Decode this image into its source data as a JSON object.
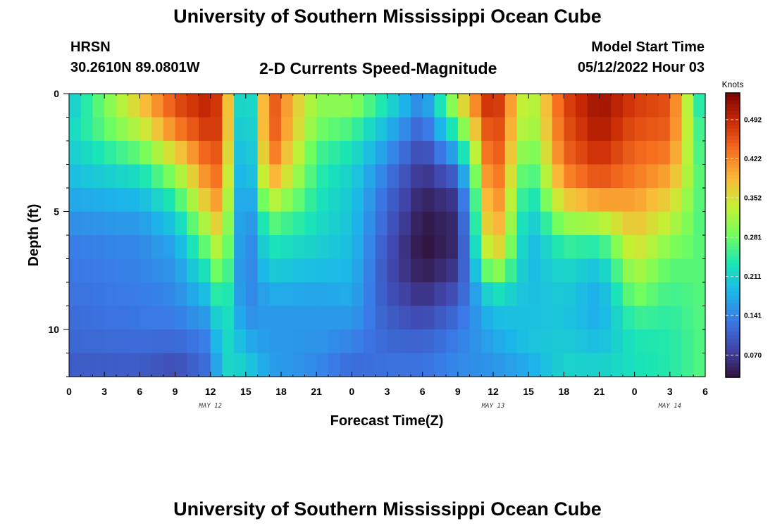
{
  "header": {
    "title": "University of Southern Mississippi Ocean Cube",
    "station": "HRSN",
    "coords": "30.2610N  89.0801W",
    "subtitle": "2-D Currents Speed-Magnitude",
    "model_start_label": "Model Start Time",
    "model_start_value": "05/12/2022 Hour 03"
  },
  "footer": {
    "title": "University of Southern Mississippi Ocean Cube"
  },
  "chart_data": {
    "type": "heatmap",
    "title": "2-D Currents Speed-Magnitude",
    "xlabel": "Forecast Time(Z)",
    "ylabel": "Depth (ft)",
    "xlim": [
      0,
      54
    ],
    "ylim": [
      12,
      0
    ],
    "x_tick_values": [
      0,
      3,
      6,
      9,
      12,
      15,
      18,
      21,
      24,
      27,
      30,
      33,
      36,
      39,
      42,
      45,
      48,
      51,
      54
    ],
    "x_tick_labels": [
      "0",
      "3",
      "6",
      "9",
      "12",
      "15",
      "18",
      "21",
      "0",
      "3",
      "6",
      "9",
      "12",
      "15",
      "18",
      "21",
      "0",
      "3",
      "6"
    ],
    "y_tick_values": [
      0,
      5,
      10
    ],
    "y_tick_labels": [
      "0",
      "5",
      "10"
    ],
    "date_labels": [
      {
        "x": 12,
        "text": "MAY 12"
      },
      {
        "x": 36,
        "text": "MAY 13"
      },
      {
        "x": 51,
        "text": "MAY 14"
      }
    ],
    "colorbar": {
      "title": "Knots",
      "ticks": [
        0.07,
        0.141,
        0.211,
        0.281,
        0.352,
        0.422,
        0.492
      ],
      "tick_labels": [
        "0.070",
        "0.141",
        "0.211",
        "0.281",
        "0.352",
        "0.422",
        "0.492"
      ],
      "range": [
        0.03,
        0.54
      ]
    },
    "x_hours": [
      0,
      6,
      9,
      12,
      13,
      14,
      15,
      17,
      21,
      24,
      27,
      30,
      33,
      36,
      39,
      42,
      45,
      48,
      51,
      54
    ],
    "depth_levels_ft": [
      0,
      1,
      2,
      3,
      4,
      5,
      6,
      7,
      8,
      9,
      10,
      11,
      12
    ],
    "speed_knots": [
      [
        0.18,
        0.22,
        0.21,
        0.2,
        0.18,
        0.16,
        0.14,
        0.13,
        0.13,
        0.12,
        0.12,
        0.11,
        0.1
      ],
      [
        0.38,
        0.36,
        0.3,
        0.25,
        0.2,
        0.17,
        0.15,
        0.14,
        0.14,
        0.13,
        0.13,
        0.11,
        0.1
      ],
      [
        0.47,
        0.45,
        0.4,
        0.33,
        0.27,
        0.22,
        0.18,
        0.16,
        0.15,
        0.14,
        0.13,
        0.1,
        0.08
      ],
      [
        0.5,
        0.5,
        0.47,
        0.45,
        0.42,
        0.37,
        0.32,
        0.27,
        0.22,
        0.18,
        0.15,
        0.13,
        0.12
      ],
      [
        0.45,
        0.47,
        0.46,
        0.44,
        0.43,
        0.4,
        0.37,
        0.34,
        0.3,
        0.27,
        0.24,
        0.22,
        0.21
      ],
      [
        0.3,
        0.3,
        0.28,
        0.26,
        0.24,
        0.22,
        0.21,
        0.2,
        0.19,
        0.19,
        0.2,
        0.22,
        0.22
      ],
      [
        0.14,
        0.13,
        0.12,
        0.12,
        0.12,
        0.12,
        0.12,
        0.12,
        0.13,
        0.14,
        0.16,
        0.19,
        0.22
      ],
      [
        0.46,
        0.48,
        0.46,
        0.44,
        0.38,
        0.3,
        0.25,
        0.22,
        0.19,
        0.16,
        0.16,
        0.16,
        0.17
      ],
      [
        0.3,
        0.3,
        0.27,
        0.25,
        0.24,
        0.23,
        0.22,
        0.2,
        0.18,
        0.16,
        0.16,
        0.15,
        0.14
      ],
      [
        0.32,
        0.28,
        0.24,
        0.22,
        0.2,
        0.2,
        0.19,
        0.19,
        0.18,
        0.17,
        0.15,
        0.13,
        0.11
      ],
      [
        0.25,
        0.2,
        0.17,
        0.14,
        0.12,
        0.11,
        0.1,
        0.09,
        0.09,
        0.1,
        0.11,
        0.12,
        0.13
      ],
      [
        0.15,
        0.12,
        0.09,
        0.07,
        0.05,
        0.04,
        0.03,
        0.03,
        0.05,
        0.07,
        0.1,
        0.12,
        0.13
      ],
      [
        0.36,
        0.3,
        0.22,
        0.14,
        0.08,
        0.06,
        0.05,
        0.06,
        0.08,
        0.11,
        0.13,
        0.14,
        0.15
      ],
      [
        0.52,
        0.5,
        0.49,
        0.48,
        0.46,
        0.44,
        0.42,
        0.37,
        0.27,
        0.2,
        0.18,
        0.16,
        0.15
      ],
      [
        0.3,
        0.3,
        0.28,
        0.25,
        0.22,
        0.2,
        0.18,
        0.18,
        0.19,
        0.19,
        0.2,
        0.19,
        0.16
      ],
      [
        0.47,
        0.46,
        0.45,
        0.44,
        0.4,
        0.34,
        0.27,
        0.23,
        0.21,
        0.2,
        0.2,
        0.21,
        0.22
      ],
      [
        0.52,
        0.52,
        0.5,
        0.48,
        0.44,
        0.37,
        0.27,
        0.21,
        0.18,
        0.17,
        0.18,
        0.2,
        0.22
      ],
      [
        0.48,
        0.47,
        0.45,
        0.44,
        0.42,
        0.39,
        0.37,
        0.34,
        0.31,
        0.27,
        0.24,
        0.23,
        0.23
      ],
      [
        0.46,
        0.46,
        0.44,
        0.42,
        0.38,
        0.35,
        0.31,
        0.28,
        0.26,
        0.25,
        0.24,
        0.24,
        0.24
      ],
      [
        0.18,
        0.22,
        0.22,
        0.24,
        0.25,
        0.25,
        0.26,
        0.27,
        0.27,
        0.27,
        0.27,
        0.27,
        0.27
      ]
    ]
  }
}
